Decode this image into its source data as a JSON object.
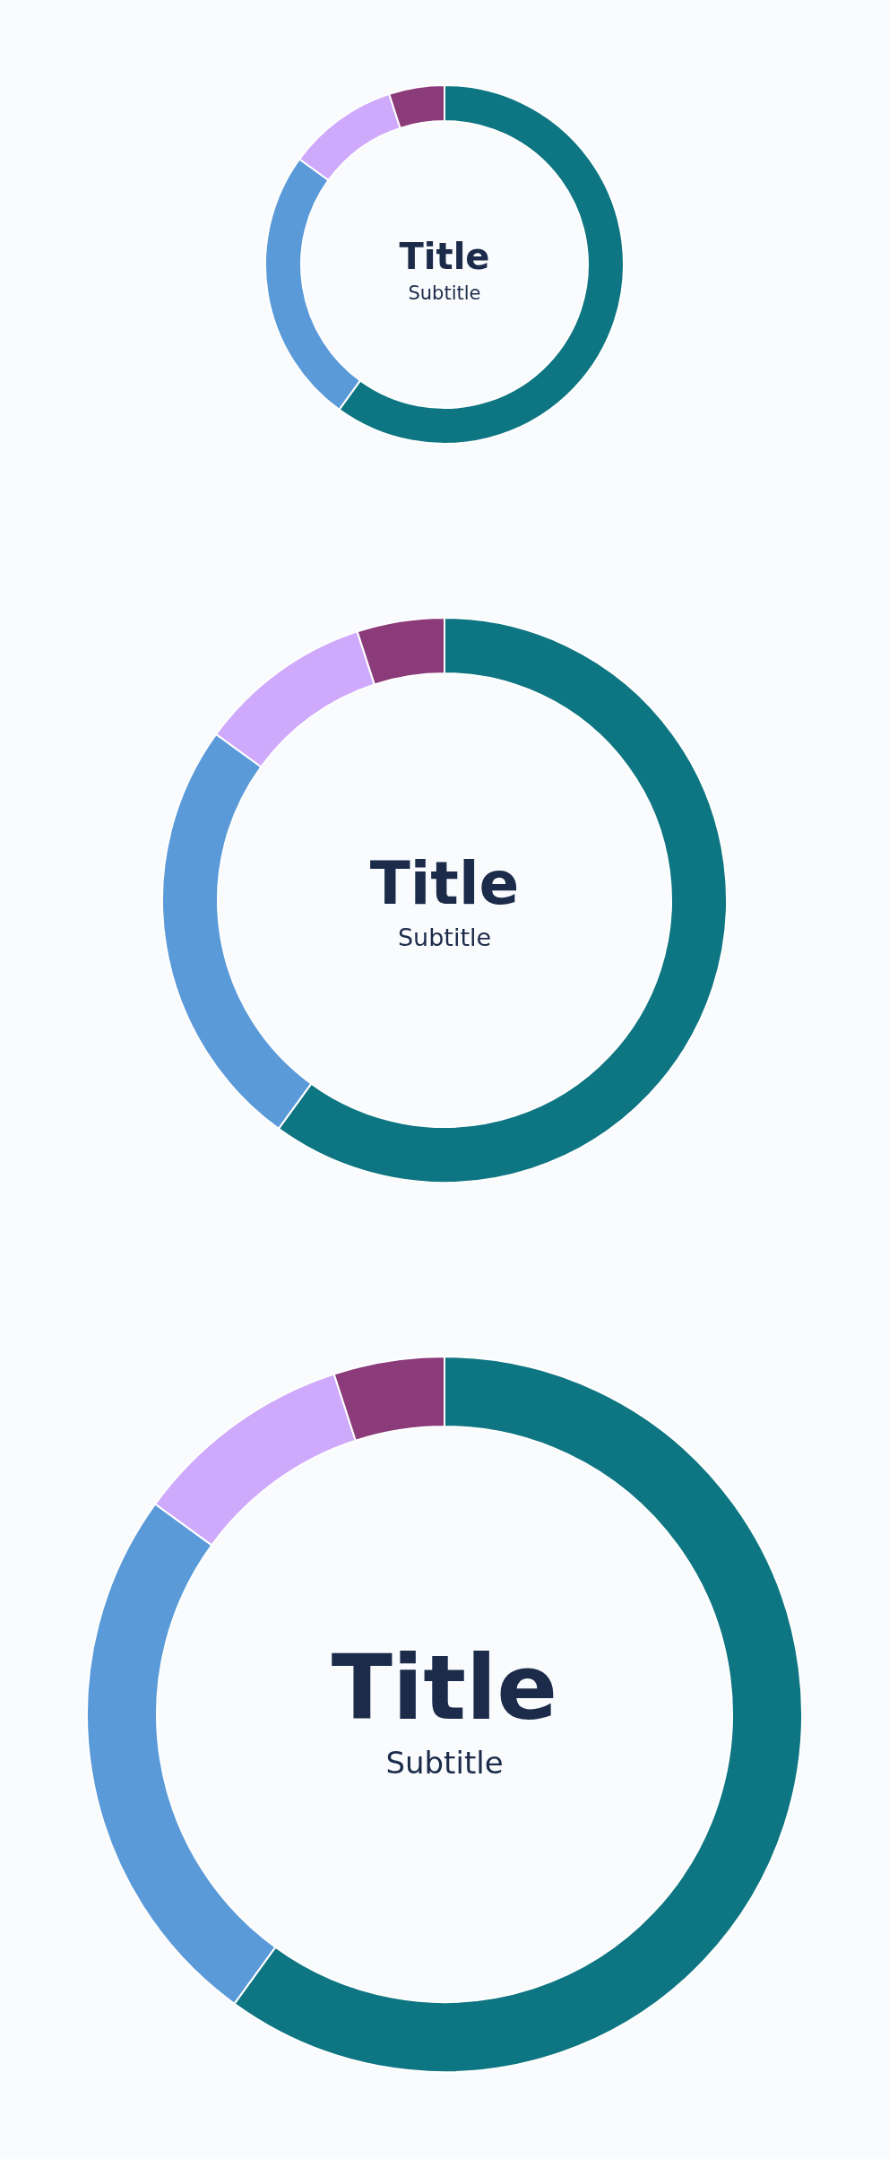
{
  "chart_data": [
    {
      "type": "donut",
      "title": "Title",
      "subtitle": "Subtitle",
      "categories": [
        null,
        null,
        null,
        null
      ],
      "values": [
        60,
        25,
        10,
        5
      ],
      "colors": [
        "#0e7582",
        "#5a9ad9",
        "#cfaafc",
        "#8b3a7a"
      ]
    },
    {
      "type": "donut",
      "title": "Title",
      "subtitle": "Subtitle",
      "categories": [
        null,
        null,
        null,
        null
      ],
      "values": [
        60,
        25,
        10,
        5
      ],
      "colors": [
        "#0e7582",
        "#5a9ad9",
        "#cfaafc",
        "#8b3a7a"
      ]
    },
    {
      "type": "donut",
      "title": "Title",
      "subtitle": "Subtitle",
      "categories": [
        null,
        null,
        null,
        null
      ],
      "values": [
        60,
        25,
        10,
        5
      ],
      "colors": [
        "#0e7582",
        "#5a9ad9",
        "#cfaafc",
        "#8b3a7a"
      ]
    }
  ]
}
